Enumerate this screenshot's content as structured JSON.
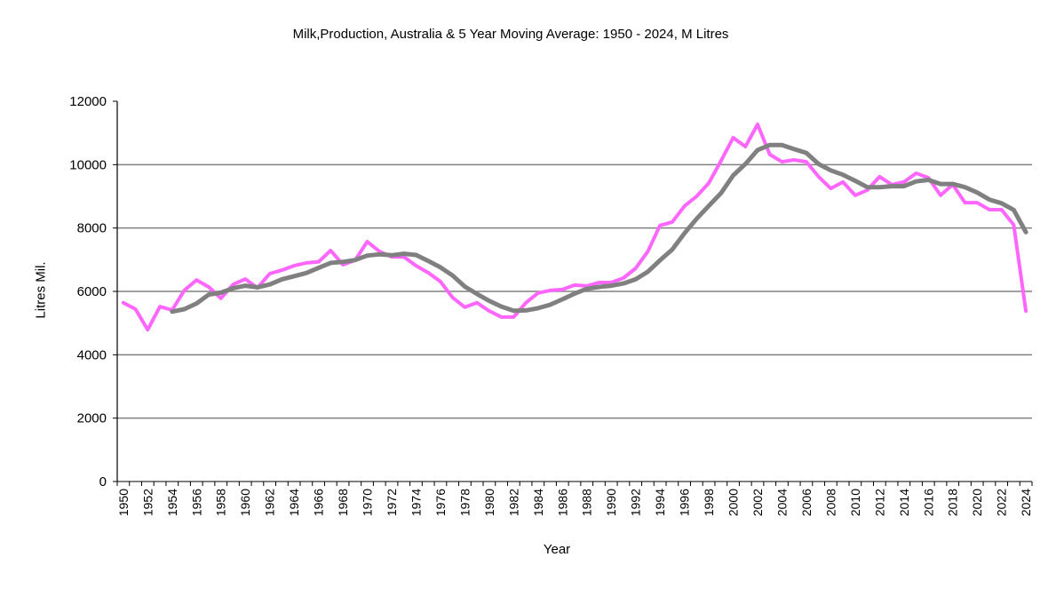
{
  "chart_data": {
    "type": "line",
    "title": "Milk,Production, Australia & 5 Year Moving Average: 1950 - 2024, M Litres",
    "xlabel": "Year",
    "ylabel": "Litres Mil.",
    "ylim": [
      0,
      12000
    ],
    "yticks": [
      "0",
      "2000",
      "4000",
      "6000",
      "8000",
      "10000",
      "12000"
    ],
    "ytick_values": [
      0,
      2000,
      4000,
      6000,
      8000,
      10000,
      12000
    ],
    "grid": "horizontal",
    "legend": "none",
    "x": [
      1950,
      1951,
      1952,
      1953,
      1954,
      1955,
      1956,
      1957,
      1958,
      1959,
      1960,
      1961,
      1962,
      1963,
      1964,
      1965,
      1966,
      1967,
      1968,
      1969,
      1970,
      1971,
      1972,
      1973,
      1974,
      1975,
      1976,
      1977,
      1978,
      1979,
      1980,
      1981,
      1982,
      1983,
      1984,
      1985,
      1986,
      1987,
      1988,
      1989,
      1990,
      1991,
      1992,
      1993,
      1994,
      1995,
      1996,
      1997,
      1998,
      1999,
      2000,
      2001,
      2002,
      2003,
      2004,
      2005,
      2006,
      2007,
      2008,
      2009,
      2010,
      2011,
      2012,
      2013,
      2014,
      2015,
      2016,
      2017,
      2018,
      2019,
      2020,
      2021,
      2022,
      2023,
      2024
    ],
    "xtick_labels": [
      "1950",
      "1952",
      "1954",
      "1956",
      "1958",
      "1960",
      "1962",
      "1964",
      "1966",
      "1968",
      "1970",
      "1972",
      "1974",
      "1976",
      "1978",
      "1980",
      "1982",
      "1984",
      "1986",
      "1988",
      "1990",
      "1992",
      "1994",
      "1996",
      "1998",
      "2000",
      "2002",
      "2004",
      "2006",
      "2008",
      "2010",
      "2012",
      "2014",
      "2016",
      "2018",
      "2020",
      "2022",
      "2024"
    ],
    "series": [
      {
        "name": "Milk Production",
        "color": "#ff66ff",
        "values": [
          5640,
          5440,
          4790,
          5520,
          5410,
          6030,
          6360,
          6140,
          5780,
          6220,
          6390,
          6110,
          6560,
          6670,
          6810,
          6900,
          6930,
          7290,
          6840,
          6980,
          7570,
          7260,
          7090,
          7090,
          6810,
          6590,
          6310,
          5800,
          5500,
          5640,
          5380,
          5190,
          5190,
          5640,
          5950,
          6030,
          6060,
          6200,
          6170,
          6280,
          6280,
          6420,
          6730,
          7260,
          8080,
          8190,
          8690,
          9000,
          9420,
          10120,
          10850,
          10570,
          11270,
          10320,
          10090,
          10150,
          10090,
          9620,
          9250,
          9450,
          9030,
          9200,
          9620,
          9370,
          9450,
          9730,
          9590,
          9030,
          9370,
          8800,
          8800,
          8580,
          8580,
          8100,
          5380
        ]
      },
      {
        "name": "5 Year Moving Average",
        "color": "#808080",
        "values": [
          null,
          null,
          null,
          null,
          5360,
          5440,
          5620,
          5900,
          5960,
          6100,
          6180,
          6130,
          6220,
          6380,
          6480,
          6580,
          6740,
          6900,
          6930,
          6990,
          7130,
          7170,
          7140,
          7190,
          7150,
          6960,
          6760,
          6500,
          6150,
          5920,
          5700,
          5520,
          5390,
          5400,
          5470,
          5580,
          5750,
          5930,
          6080,
          6140,
          6180,
          6250,
          6380,
          6620,
          6980,
          7320,
          7830,
          8290,
          8700,
          9100,
          9660,
          10020,
          10460,
          10620,
          10620,
          10490,
          10370,
          10020,
          9820,
          9680,
          9490,
          9290,
          9290,
          9320,
          9320,
          9470,
          9520,
          9390,
          9390,
          9290,
          9120,
          8900,
          8780,
          8570,
          7870
        ]
      }
    ]
  }
}
